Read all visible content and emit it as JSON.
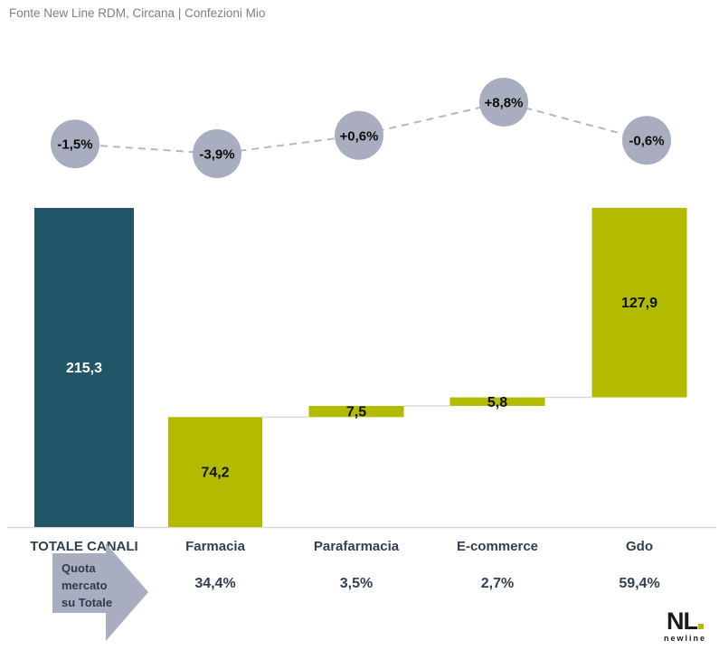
{
  "source_line": "Fonte New Line RDM, Circana | Confezioni Mio",
  "colors": {
    "total_bar": "#205668",
    "channel_bar": "#b2bb00",
    "bubble": "#a8aebf",
    "arrow": "#a8aebf",
    "label_text": "#333f50",
    "line_gray": "#d9d9d9",
    "dash_gray": "#b3b9c3",
    "source_text": "#808080"
  },
  "chart_data": {
    "type": "bar",
    "subtype": "waterfall",
    "title": "",
    "categories": [
      "TOTALE CANALI",
      "Farmacia",
      "Parafarmacia",
      "E-commerce",
      "Gdo"
    ],
    "values": [
      215.3,
      74.2,
      7.5,
      5.8,
      127.9
    ],
    "value_labels": [
      "215,3",
      "74,2",
      "7,5",
      "5,8",
      "127,9"
    ],
    "first_bar_is_total": true,
    "growth_series": {
      "name": "variazione %",
      "values": [
        -1.5,
        -3.9,
        0.6,
        8.8,
        -0.6
      ],
      "labels": [
        "-1,5%",
        "-3,9%",
        "+0,6%",
        "+8,8%",
        "-0,6%"
      ]
    },
    "share_series": {
      "name": "Quota mercato su Totale",
      "labels": [
        "",
        "34,4%",
        "3,5%",
        "2,7%",
        "59,4%"
      ]
    },
    "xlabel": "",
    "ylabel": "",
    "ylim": [
      0,
      215.3
    ],
    "grid": false,
    "legend": false
  },
  "annotation": {
    "arrow_lines": [
      "Quota",
      "mercato",
      "su Totale"
    ]
  },
  "logo": {
    "text": "NL",
    "subtext": "newline"
  }
}
